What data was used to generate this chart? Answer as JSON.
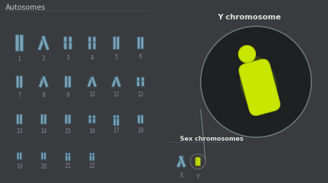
{
  "bg_color": "#3a3b3e",
  "title": "Autosomes",
  "title_color": "#c8ccd0",
  "title_fontsize": 7.5,
  "chrom_color": "#7da8bc",
  "chrom_edge": "#3a5566",
  "label_color": "#888899",
  "label_fontsize": 5.5,
  "y_chrom_color": "#c8e600",
  "y_label": "Y chromosome",
  "y_label_color": "#e0e0e0",
  "y_label_fontsize": 8,
  "sex_label": "Sex chromosomes",
  "sex_label_color": "#e0e0e0",
  "sex_label_fontsize": 6.5,
  "x_label": "X",
  "y_tick_label": "Y",
  "circle_bg": "#1e2122",
  "circle_edge": "#6a7070",
  "line_color": "#7a8888",
  "figsize": [
    4.74,
    2.64
  ],
  "dpi": 100
}
